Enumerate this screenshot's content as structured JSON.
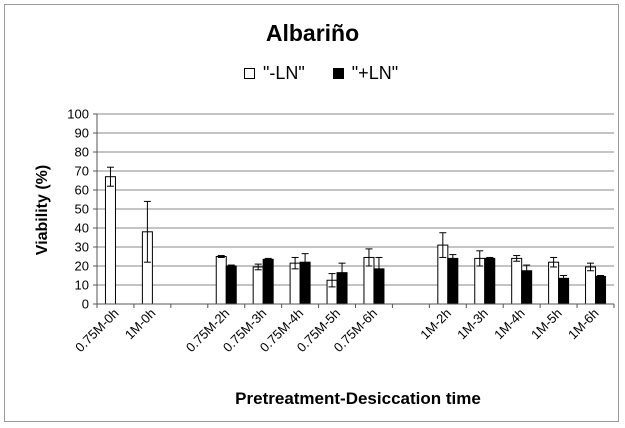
{
  "chart_data": {
    "type": "bar",
    "title": "Albariño",
    "xlabel": "Pretreatment-Desiccation time",
    "ylabel": "Viability (%)",
    "ylim": [
      0,
      100
    ],
    "yticks": [
      0,
      10,
      20,
      30,
      40,
      50,
      60,
      70,
      80,
      90,
      100
    ],
    "grid": true,
    "legend_position": "top",
    "categories": [
      "0.75M-0h",
      "1M-0h",
      "",
      "0.75M-2h",
      "0.75M-3h",
      "0.75M-4h",
      "0.75M-5h",
      "0.75M-6h",
      "",
      "1M-2h",
      "1M-3h",
      "1M-4h",
      "1M-5h",
      "1M-6h"
    ],
    "series": [
      {
        "name": "\"-LN\"",
        "color": "#ffffff",
        "values": [
          67,
          38,
          null,
          25,
          19.5,
          21.5,
          12.5,
          24.5,
          null,
          31,
          24,
          24,
          22,
          19.5
        ],
        "errors": [
          5,
          16,
          null,
          0.5,
          1.5,
          3,
          3.5,
          4.5,
          null,
          6.5,
          4,
          1.5,
          2.5,
          2
        ]
      },
      {
        "name": "\"+LN\"",
        "color": "#000000",
        "values": [
          null,
          null,
          null,
          20,
          23.5,
          22,
          16.5,
          18.5,
          null,
          24,
          24,
          17.5,
          13.5,
          14.5
        ],
        "errors": [
          null,
          null,
          null,
          0.5,
          0.5,
          4.5,
          5,
          6,
          null,
          2,
          0.5,
          3,
          1.5,
          0.5
        ]
      }
    ]
  }
}
